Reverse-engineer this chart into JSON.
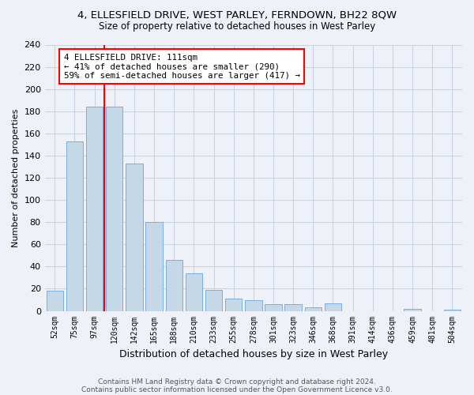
{
  "title": "4, ELLESFIELD DRIVE, WEST PARLEY, FERNDOWN, BH22 8QW",
  "subtitle": "Size of property relative to detached houses in West Parley",
  "xlabel": "Distribution of detached houses by size in West Parley",
  "ylabel": "Number of detached properties",
  "footnote1": "Contains HM Land Registry data © Crown copyright and database right 2024.",
  "footnote2": "Contains public sector information licensed under the Open Government Licence v3.0.",
  "bar_labels": [
    "52sqm",
    "75sqm",
    "97sqm",
    "120sqm",
    "142sqm",
    "165sqm",
    "188sqm",
    "210sqm",
    "233sqm",
    "255sqm",
    "278sqm",
    "301sqm",
    "323sqm",
    "346sqm",
    "368sqm",
    "391sqm",
    "414sqm",
    "436sqm",
    "459sqm",
    "481sqm",
    "504sqm"
  ],
  "bar_values": [
    18,
    153,
    184,
    184,
    133,
    80,
    46,
    34,
    19,
    11,
    10,
    6,
    6,
    3,
    7,
    0,
    0,
    0,
    2,
    0,
    1
  ],
  "bar_color": "#c5d8e8",
  "bar_edge_color": "#7aade0",
  "vline_color": "red",
  "annotation_line1": "4 ELLESFIELD DRIVE: 111sqm",
  "annotation_line2": "← 41% of detached houses are smaller (290)",
  "annotation_line3": "59% of semi-detached houses are larger (417) →",
  "annotation_box_color": "white",
  "annotation_box_edge_color": "red",
  "ylim": [
    0,
    240
  ],
  "yticks": [
    0,
    20,
    40,
    60,
    80,
    100,
    120,
    140,
    160,
    180,
    200,
    220,
    240
  ],
  "grid_color": "#c8d4e4",
  "bg_color": "#eef2f8",
  "title_fontsize": 9.5,
  "subtitle_fontsize": 8.5,
  "footnote_fontsize": 6.5
}
